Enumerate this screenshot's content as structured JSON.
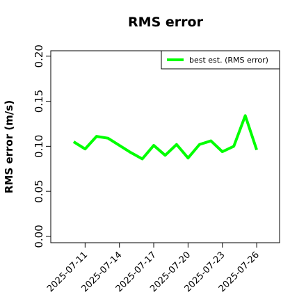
{
  "chart_data": {
    "type": "line",
    "title": "RMS error",
    "ylabel": "RMS error (m/s)",
    "x": [
      "2025-07-10",
      "2025-07-11",
      "2025-07-12",
      "2025-07-13",
      "2025-07-14",
      "2025-07-15",
      "2025-07-16",
      "2025-07-17",
      "2025-07-18",
      "2025-07-19",
      "2025-07-20",
      "2025-07-21",
      "2025-07-22",
      "2025-07-23",
      "2025-07-24",
      "2025-07-25",
      "2025-07-26"
    ],
    "series": [
      {
        "name": "best est. (RMS error)",
        "color": "#00ff00",
        "values": [
          0.105,
          0.097,
          0.111,
          0.109,
          0.101,
          0.093,
          0.086,
          0.101,
          0.09,
          0.102,
          0.087,
          0.102,
          0.106,
          0.094,
          0.1,
          0.134,
          0.096
        ]
      }
    ],
    "xlim": [
      "2025-07-08",
      "2025-07-28"
    ],
    "xticks": [
      "2025-07-11",
      "2025-07-14",
      "2025-07-17",
      "2025-07-20",
      "2025-07-23",
      "2025-07-26"
    ],
    "xtick_label_colors": [
      "#000000",
      "#000000",
      "#228b22",
      "#000000",
      "#000000",
      "#000000"
    ],
    "ylim": [
      -0.007,
      0.206
    ],
    "yticks": [
      {
        "value": 0,
        "label": "0.00"
      },
      {
        "value": 0.05,
        "label": "0.05"
      },
      {
        "value": 0.1,
        "label": "0.10"
      },
      {
        "value": 0.15,
        "label": "0.15"
      },
      {
        "value": 0.2,
        "label": "0.20"
      }
    ],
    "legend": "top-right"
  }
}
